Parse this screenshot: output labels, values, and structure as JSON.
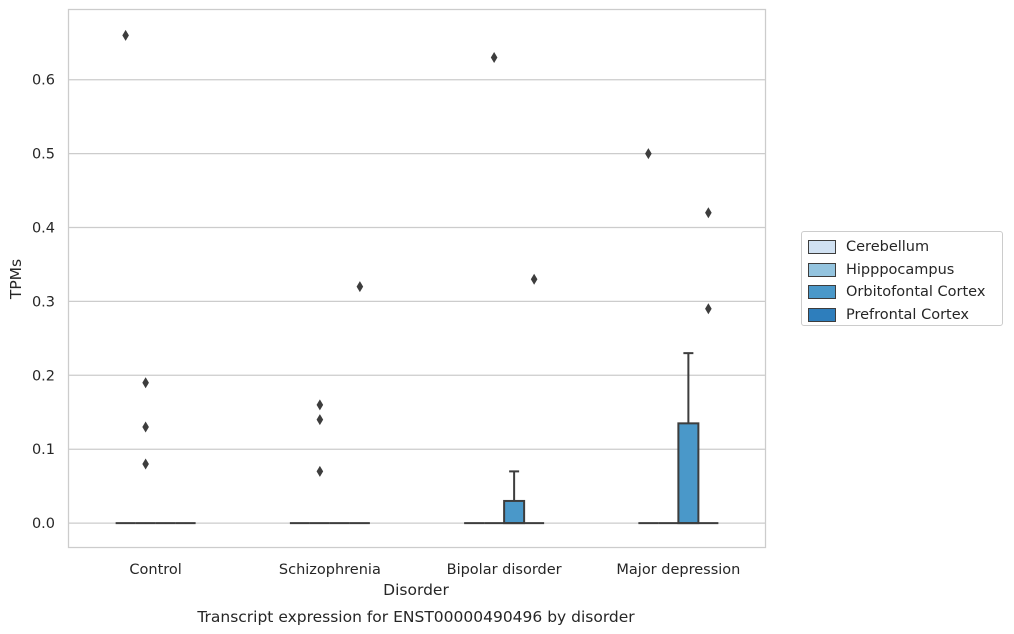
{
  "chart_data": {
    "type": "box",
    "title": "Transcript expression for ENST00000490496 by disorder",
    "xlabel": "Disorder",
    "ylabel": "TPMs",
    "ylim": [
      -0.033,
      0.695
    ],
    "yticks": [
      0.0,
      0.1,
      0.2,
      0.3,
      0.4,
      0.5,
      0.6
    ],
    "ytick_labels": [
      "0.0",
      "0.1",
      "0.2",
      "0.3",
      "0.4",
      "0.5",
      "0.6"
    ],
    "grid": true,
    "legend_position": "right",
    "categories": [
      "Control",
      "Schizophrenia",
      "Bipolar disorder",
      "Major depression"
    ],
    "series": [
      {
        "name": "Cerebellum",
        "color": "#d0e1f2",
        "boxes": [
          {
            "category": "Control",
            "q1": 0,
            "median": 0,
            "q3": 0,
            "whisker_low": 0,
            "whisker_high": 0,
            "outliers": [
              0.66
            ]
          },
          {
            "category": "Schizophrenia",
            "q1": 0,
            "median": 0,
            "q3": 0,
            "whisker_low": 0,
            "whisker_high": 0,
            "outliers": []
          },
          {
            "category": "Bipolar disorder",
            "q1": 0,
            "median": 0,
            "q3": 0,
            "whisker_low": 0,
            "whisker_high": 0,
            "outliers": []
          },
          {
            "category": "Major depression",
            "q1": 0,
            "median": 0,
            "q3": 0,
            "whisker_low": 0,
            "whisker_high": 0,
            "outliers": [
              0.5
            ]
          }
        ]
      },
      {
        "name": "Hipppocampus",
        "color": "#94c4df",
        "boxes": [
          {
            "category": "Control",
            "q1": 0,
            "median": 0,
            "q3": 0,
            "whisker_low": 0,
            "whisker_high": 0,
            "outliers": [
              0.19,
              0.13,
              0.08
            ]
          },
          {
            "category": "Schizophrenia",
            "q1": 0,
            "median": 0,
            "q3": 0,
            "whisker_low": 0,
            "whisker_high": 0,
            "outliers": [
              0.16,
              0.14,
              0.07
            ]
          },
          {
            "category": "Bipolar disorder",
            "q1": 0,
            "median": 0,
            "q3": 0,
            "whisker_low": 0,
            "whisker_high": 0,
            "outliers": [
              0.63
            ]
          },
          {
            "category": "Major depression",
            "q1": 0,
            "median": 0,
            "q3": 0,
            "whisker_low": 0,
            "whisker_high": 0,
            "outliers": []
          }
        ]
      },
      {
        "name": "Orbitofontal Cortex",
        "color": "#4a98c9",
        "boxes": [
          {
            "category": "Control",
            "q1": 0,
            "median": 0,
            "q3": 0,
            "whisker_low": 0,
            "whisker_high": 0,
            "outliers": []
          },
          {
            "category": "Schizophrenia",
            "q1": 0,
            "median": 0,
            "q3": 0,
            "whisker_low": 0,
            "whisker_high": 0,
            "outliers": []
          },
          {
            "category": "Bipolar disorder",
            "q1": 0,
            "median": 0,
            "q3": 0.03,
            "whisker_low": 0,
            "whisker_high": 0.07,
            "outliers": []
          },
          {
            "category": "Major depression",
            "q1": 0,
            "median": 0,
            "q3": 0.135,
            "whisker_low": 0,
            "whisker_high": 0.23,
            "outliers": []
          }
        ]
      },
      {
        "name": "Prefrontal Cortex",
        "color": "#2e7ebc",
        "boxes": [
          {
            "category": "Control",
            "q1": 0,
            "median": 0,
            "q3": 0,
            "whisker_low": 0,
            "whisker_high": 0,
            "outliers": []
          },
          {
            "category": "Schizophrenia",
            "q1": 0,
            "median": 0,
            "q3": 0,
            "whisker_low": 0,
            "whisker_high": 0,
            "outliers": [
              0.32
            ]
          },
          {
            "category": "Bipolar disorder",
            "q1": 0,
            "median": 0,
            "q3": 0,
            "whisker_low": 0,
            "whisker_high": 0,
            "outliers": [
              0.33
            ]
          },
          {
            "category": "Major depression",
            "q1": 0,
            "median": 0,
            "q3": 0,
            "whisker_low": 0,
            "whisker_high": 0,
            "outliers": [
              0.42,
              0.29
            ]
          }
        ]
      }
    ]
  }
}
